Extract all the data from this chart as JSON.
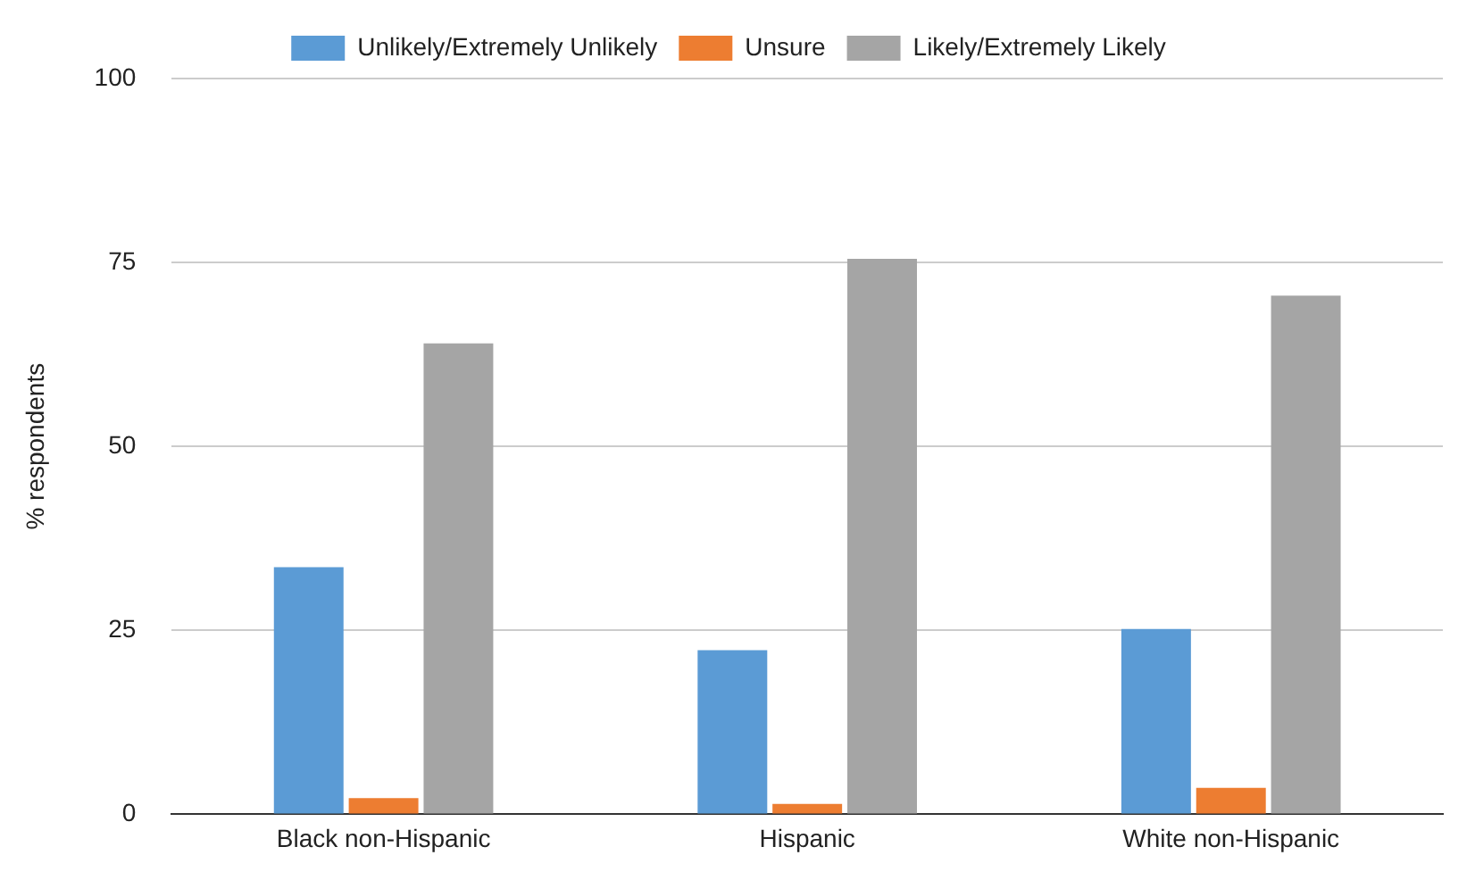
{
  "chart_data": {
    "type": "bar",
    "ylabel": "% respondents",
    "categories": [
      "Black non-Hispanic",
      "Hispanic",
      "White non-Hispanic"
    ],
    "series": [
      {
        "name": "Unlikely/Extremely Unlikely",
        "color": "#5b9bd5",
        "values": [
          33.6,
          22.3,
          25.2
        ]
      },
      {
        "name": "Unsure",
        "color": "#ed7d31",
        "values": [
          2.2,
          1.4,
          3.6
        ]
      },
      {
        "name": "Likely/Extremely Likely",
        "color": "#a5a5a5",
        "values": [
          64,
          75.5,
          70.5
        ]
      }
    ],
    "ylim": [
      0,
      100
    ],
    "yticks": [
      0,
      25,
      50,
      75,
      100
    ],
    "grid": "y",
    "legend": "top"
  }
}
